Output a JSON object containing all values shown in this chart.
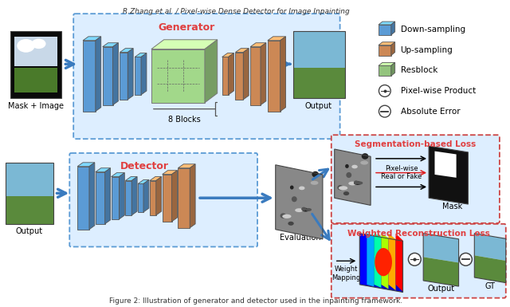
{
  "title": "R.Zhang et al. / Pixel-wise Dense Detector for Image Inpainting",
  "caption": "Figure 2: Illustration of generator and detector used in the inpainting framework.",
  "bg_color": "#ffffff",
  "blue_color": "#5b9bd5",
  "blue_dark": "#3a7bbf",
  "orange_color": "#cc8855",
  "orange_dark": "#aa6633",
  "green_color": "#93c47d",
  "green_dark": "#6aaa50",
  "light_blue_bg": "#ddeeff",
  "red_label": "#e04040",
  "legend": {
    "down_sampling": "Down-sampling",
    "up_sampling": "Up-sampling",
    "resblock": "Resblock",
    "pixel_product": "Pixel-wise Product",
    "abs_error": "Absolute Error"
  },
  "labels": {
    "mask_image": "Mask + Image",
    "output_top": "Output",
    "generator": "Generator",
    "eight_blocks": "8 Blocks",
    "detector": "Detector",
    "output_bottom": "Output",
    "evaluation": "Evaluation",
    "seg_loss": "Segmentation-based Loss",
    "recon_loss": "Weighted Reconstruction Loss",
    "pixel_wise": "Pixel-wise\nReal or Fake",
    "weight_mapping": "Weight\nMapping",
    "mask": "Mask",
    "output_label": "Output",
    "gt_label": "GT"
  }
}
